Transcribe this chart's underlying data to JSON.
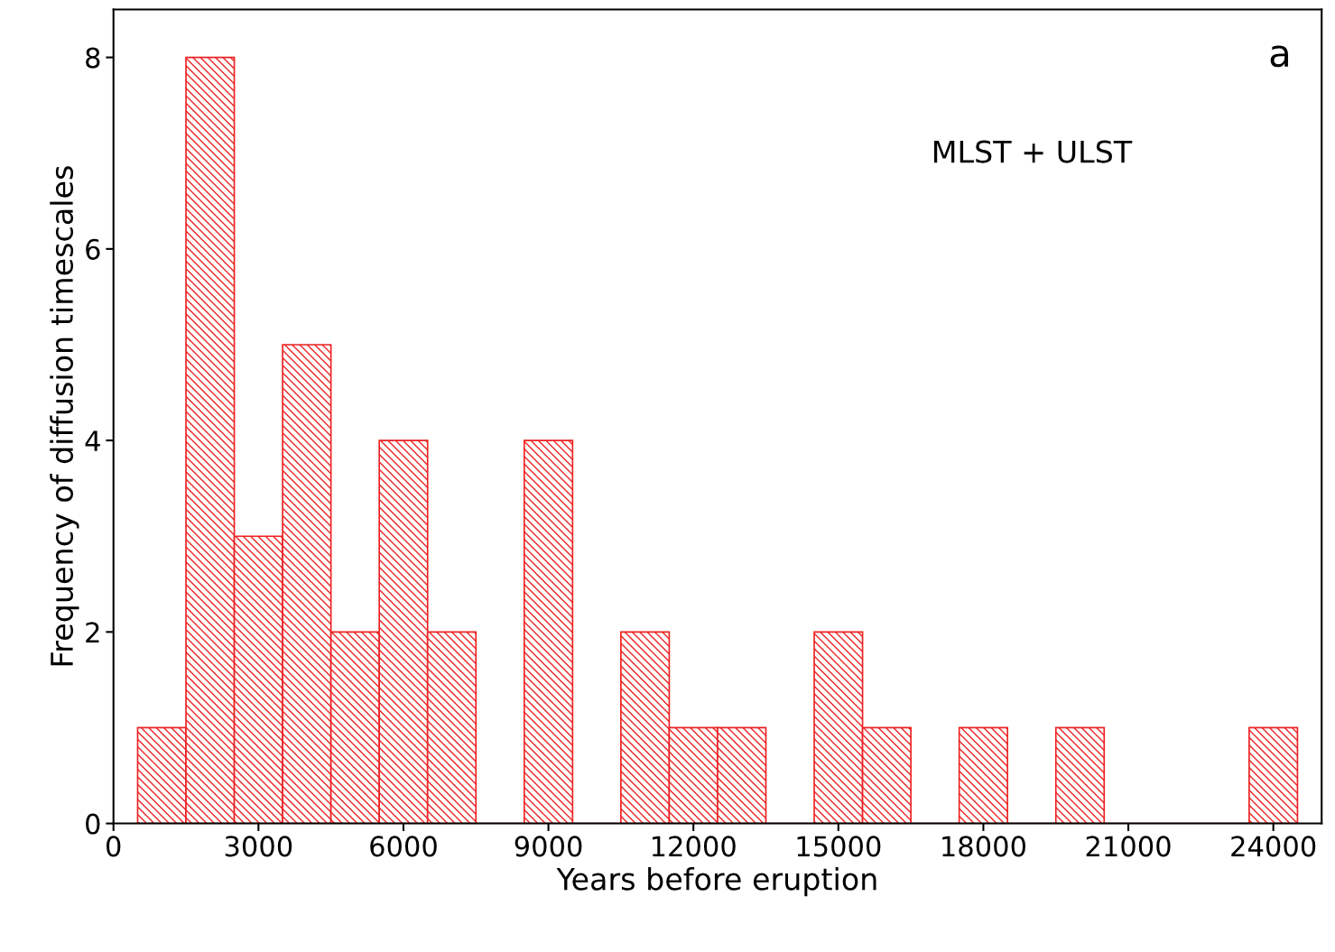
{
  "chart_data": {
    "type": "histogram",
    "xlabel": "Years before eruption",
    "ylabel": "Frequency of diffusion timescales",
    "bins": [
      500,
      1500,
      2500,
      3500,
      4500,
      5500,
      6500,
      7500,
      8500,
      9500,
      10500,
      11500,
      12500,
      13500,
      14500,
      15500,
      16500,
      17500,
      18500,
      19500,
      20500,
      21500,
      22500,
      23500,
      24500
    ],
    "values": [
      1,
      8,
      3,
      5,
      2,
      4,
      2,
      0,
      4,
      0,
      2,
      1,
      1,
      0,
      2,
      1,
      0,
      1,
      0,
      1,
      0,
      0,
      0,
      1
    ],
    "color": "#ee2222",
    "xlim": [
      0,
      25000
    ],
    "xticks": [
      0,
      3000,
      6000,
      9000,
      12000,
      15000,
      18000,
      21000,
      24000
    ],
    "ylim": [
      0,
      8.5
    ],
    "yticks": [
      0,
      2,
      4,
      6,
      8
    ],
    "grid": false,
    "annotations": [
      "MLST + ULST",
      "a"
    ]
  }
}
